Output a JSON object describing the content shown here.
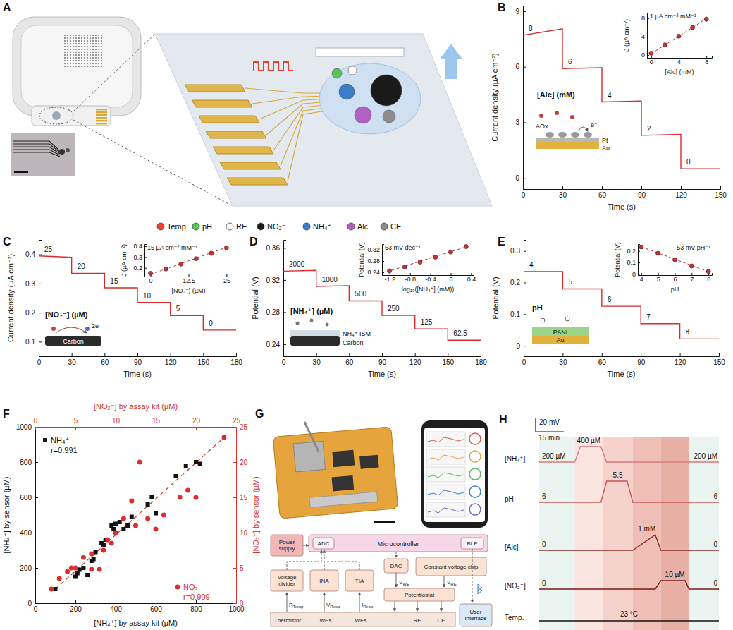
{
  "panel_labels": [
    "A",
    "B",
    "C",
    "D",
    "E",
    "F",
    "G",
    "H"
  ],
  "panel_A": {
    "legend": [
      {
        "label": "Temp.",
        "color": "#e8412f"
      },
      {
        "label": "pH",
        "color": "#59c35a"
      },
      {
        "label": "RE",
        "color": "#ffffff"
      },
      {
        "label": "NO₂⁻",
        "color": "#1a1a1a"
      },
      {
        "label": "NH₄⁺",
        "color": "#3d7cc9"
      },
      {
        "label": "Alc",
        "color": "#b35fc4"
      },
      {
        "label": "CE",
        "color": "#8c8c8c"
      }
    ]
  },
  "panel_G": {
    "boxes": [
      "Power supply",
      "ADC",
      "Microcontroller",
      "BLE",
      "Voltage divider",
      "INA",
      "TIA",
      "DAC",
      "Constant voltage chip",
      "Potentiostat",
      "Thermistor",
      "WEs",
      "WEs",
      "RE",
      "CE",
      "User interface"
    ],
    "signals": [
      {
        "base": "R",
        "sub": "Temp"
      },
      {
        "base": "V",
        "sub": "Resp"
      },
      {
        "base": "I",
        "sub": "Resp"
      },
      {
        "base": "V",
        "sub": "WE"
      },
      {
        "base": "V",
        "sub": "RE"
      }
    ]
  },
  "chart_data": [
    {
      "type": "line",
      "title": "[Alc] (mM)",
      "x_label": "Time (s)",
      "y_label": "Current density (µA cm⁻²)",
      "x": [
        0,
        30,
        30,
        60,
        60,
        90,
        90,
        120,
        120,
        150
      ],
      "series": [
        {
          "color": "#d62c2c",
          "values": [
            7.7,
            8.05,
            5.9,
            5.95,
            4.1,
            4.15,
            2.3,
            2.35,
            0.5,
            0.5
          ]
        }
      ],
      "steps": [
        8,
        6,
        4,
        2,
        0
      ],
      "xlim": [
        0,
        150
      ],
      "xticks": [
        0,
        30,
        60,
        90,
        120,
        150
      ],
      "ylim": [
        -0.6,
        9.3
      ],
      "yticks": [
        0,
        3,
        6,
        9
      ],
      "annotations": [
        "AOx",
        "Pt",
        "Au",
        "e⁻"
      ],
      "inset": {
        "type": "scatter",
        "x_label": "[Alc] (mM)",
        "y_label": "J (µA cm⁻²)",
        "annotation": "1 µA cm⁻² mM⁻¹",
        "x": [
          0,
          2,
          4,
          6,
          8
        ],
        "values": [
          0.4,
          2.2,
          4.1,
          6.0,
          7.8
        ],
        "errors": [
          0.15,
          0.25,
          0.4,
          0.5,
          0.5
        ],
        "color": "#d62c2c",
        "xlim": [
          -0.6,
          8.8
        ],
        "xticks": [
          0,
          4,
          8
        ],
        "ylim": [
          -0.6,
          9.2
        ],
        "yticks": [
          0,
          4,
          8
        ],
        "trend": {
          "x": [
            0,
            8
          ],
          "values": [
            0.3,
            7.9
          ]
        }
      }
    },
    {
      "type": "line",
      "title": "[NO₂⁻] (µM)",
      "x_label": "Time (s)",
      "y_label": "Current density (µA cm⁻²)",
      "x": [
        0,
        30,
        30,
        60,
        60,
        90,
        90,
        120,
        120,
        150,
        150,
        180
      ],
      "series": [
        {
          "color": "#d62c2c",
          "values": [
            0.395,
            0.39,
            0.335,
            0.335,
            0.285,
            0.285,
            0.235,
            0.235,
            0.19,
            0.19,
            0.14,
            0.14
          ]
        }
      ],
      "steps": [
        25,
        20,
        15,
        10,
        5,
        0
      ],
      "xlim": [
        0,
        180
      ],
      "xticks": [
        0,
        30,
        60,
        90,
        120,
        150,
        180
      ],
      "ylim": [
        0.05,
        0.45
      ],
      "yticks": [
        0.1,
        0.2,
        0.3,
        0.4
      ],
      "annotations": [
        "2e⁻",
        "Carbon"
      ],
      "inset": {
        "type": "scatter",
        "x_label": "[NO₂⁻] (µM)",
        "y_label": "J (µA cm⁻²)",
        "annotation": "15 µA cm⁻² mM⁻¹",
        "x": [
          0,
          5,
          10,
          15,
          20,
          25
        ],
        "values": [
          0.15,
          0.19,
          0.235,
          0.285,
          0.335,
          0.385
        ],
        "errors": [
          0.01,
          0.015,
          0.015,
          0.012,
          0.015,
          0.015
        ],
        "color": "#d62c2c",
        "xlim": [
          -2,
          27
        ],
        "xticks": [
          0,
          12.5,
          25
        ],
        "ylim": [
          0.12,
          0.42
        ],
        "yticks": [
          0.2,
          0.3,
          0.4
        ],
        "trend": {
          "x": [
            0,
            25
          ],
          "values": [
            0.14,
            0.39
          ]
        }
      }
    },
    {
      "type": "line",
      "title": "[NH₄⁺] (µM)",
      "x_label": "Time (s)",
      "y_label": "Potential (V)",
      "x": [
        0,
        30,
        30,
        60,
        60,
        90,
        90,
        120,
        120,
        150,
        150,
        180
      ],
      "series": [
        {
          "color": "#d62c2c",
          "values": [
            0.331,
            0.332,
            0.312,
            0.313,
            0.294,
            0.294,
            0.276,
            0.276,
            0.259,
            0.259,
            0.245,
            0.245
          ]
        }
      ],
      "steps": [
        2000,
        1000,
        500,
        250,
        125,
        62.5
      ],
      "xlim": [
        0,
        180
      ],
      "xticks": [
        0,
        30,
        60,
        90,
        120,
        150,
        180
      ],
      "ylim": [
        0.225,
        0.37
      ],
      "yticks": [
        0.24,
        0.28,
        0.32,
        0.36
      ],
      "annotations": [
        "NH₄⁺ ISM",
        "Carbon"
      ],
      "inset": {
        "type": "scatter",
        "x_label": "log₁₀([NH₄⁺] (mM))",
        "y_label": "Potential (V)",
        "annotation": "53 mV dec⁻¹",
        "x": [
          -1.204,
          -0.903,
          -0.602,
          -0.301,
          0,
          0.301
        ],
        "values": [
          0.245,
          0.259,
          0.276,
          0.294,
          0.312,
          0.331
        ],
        "errors": [
          0.006,
          0.006,
          0.005,
          0.005,
          0.004,
          0.002
        ],
        "color": "#d62c2c",
        "xlim": [
          -1.35,
          0.45
        ],
        "xticks": [
          -1.2,
          -0.8,
          -0.4,
          0,
          0.4
        ],
        "ylim": [
          0.23,
          0.34
        ],
        "yticks": [
          0.24,
          0.28,
          0.32
        ],
        "trend": {
          "x": [
            -1.25,
            0.35
          ],
          "values": [
            0.242,
            0.333
          ]
        }
      }
    },
    {
      "type": "line",
      "title": "pH",
      "x_label": "Time (s)",
      "y_label": "Potential (V)",
      "x": [
        0,
        30,
        30,
        60,
        60,
        90,
        90,
        120,
        120,
        150
      ],
      "series": [
        {
          "color": "#d62c2c",
          "values": [
            0.235,
            0.235,
            0.18,
            0.18,
            0.125,
            0.125,
            0.07,
            0.07,
            0.022,
            0.022
          ]
        }
      ],
      "steps": [
        4,
        5,
        6,
        7,
        8
      ],
      "xlim": [
        0,
        150
      ],
      "xticks": [
        0,
        30,
        60,
        90,
        120,
        150
      ],
      "ylim": [
        -0.033,
        0.335
      ],
      "yticks": [
        0,
        0.1,
        0.2,
        0.3
      ],
      "annotations": [
        "PANI",
        "Au"
      ],
      "inset": {
        "type": "scatter",
        "x_label": "pH",
        "y_label": "Potential (V)",
        "annotation": "53 mV pH⁻¹",
        "x": [
          4,
          5,
          6,
          7,
          8
        ],
        "values": [
          0.235,
          0.18,
          0.125,
          0.07,
          0.022
        ],
        "errors": [
          0.005,
          0.006,
          0.005,
          0.005,
          0.006
        ],
        "color": "#d62c2c",
        "xlim": [
          3.8,
          8.2
        ],
        "xticks": [
          4,
          5,
          6,
          7,
          8
        ],
        "ylim": [
          -0.01,
          0.26
        ],
        "yticks": [
          0,
          0.1,
          0.2
        ],
        "trend": {
          "x": [
            4,
            8
          ],
          "values": [
            0.237,
            0.02
          ]
        }
      }
    },
    {
      "type": "scatter",
      "x_label": "[NH₄⁺] by assay kit (µM)",
      "y_label": "[NH₄⁺] by sensor (µM)",
      "x2_label": "[NO₂⁻] by assay kit (µM)",
      "y2_label": "[NO₂⁻] by sensor (µM)",
      "xlim": [
        0,
        1000
      ],
      "xticks": [
        0,
        200,
        400,
        600,
        800,
        1000
      ],
      "ylim": [
        0,
        1000
      ],
      "yticks": [
        0,
        200,
        400,
        600,
        800,
        1000
      ],
      "x2lim": [
        0,
        25
      ],
      "x2ticks": [
        0,
        5,
        10,
        15,
        20,
        25
      ],
      "y2lim": [
        0,
        25
      ],
      "y2ticks": [
        0,
        5,
        10,
        15,
        20,
        25
      ],
      "series": [
        {
          "name": "NH₄⁺",
          "color": "#111111",
          "marker": "square",
          "x": [
            100,
            200,
            210,
            220,
            240,
            260,
            280,
            290,
            300,
            330,
            340,
            350,
            380,
            390,
            400,
            420,
            440,
            460,
            480,
            560,
            580,
            600,
            700,
            750,
            800,
            820
          ],
          "values": [
            80,
            150,
            170,
            190,
            200,
            160,
            240,
            250,
            290,
            340,
            330,
            360,
            440,
            420,
            450,
            460,
            420,
            440,
            490,
            560,
            600,
            510,
            720,
            780,
            800,
            790
          ]
        },
        {
          "name": "NO₂⁻",
          "color": "#d8302c",
          "marker": "circle",
          "axis": "y2",
          "x": [
            2,
            3,
            4,
            4.5,
            5,
            6,
            7,
            7,
            8,
            8.5,
            9,
            9.5,
            10,
            11,
            12,
            12.5,
            13,
            14,
            15,
            16,
            18,
            19,
            20,
            23.5
          ],
          "values": [
            2,
            3.5,
            4.5,
            5,
            5,
            6.5,
            7,
            4.8,
            4.8,
            7.5,
            9,
            8.5,
            10,
            12,
            14.5,
            11,
            20,
            12,
            10.5,
            12.5,
            15,
            16,
            15,
            23.5
          ]
        }
      ],
      "annotations": [
        "r=0.991",
        "r=0.909"
      ],
      "trend": {
        "x": [
          100,
          940
        ],
        "values": [
          80,
          940
        ]
      }
    },
    {
      "type": "line",
      "tick_labels": false,
      "x": [
        0,
        19,
        22,
        33,
        36,
        47,
        50,
        62,
        65,
        78,
        80,
        96
      ],
      "xlim": [
        0,
        96
      ],
      "bands": [
        [
          0,
          19
        ],
        [
          19,
          34
        ],
        [
          34,
          50
        ],
        [
          50,
          65
        ],
        [
          65,
          80
        ],
        [
          80,
          96
        ]
      ],
      "scale_bar": {
        "x": 15,
        "x_label": "15 min",
        "y": 20,
        "y_label": "20 mV"
      },
      "series": [
        {
          "name": "[NH₄⁺]",
          "color": "#d77b7b",
          "labels": [
            "200 µM",
            "400 µM",
            "200 µM"
          ],
          "values": [
            0,
            0,
            22,
            22,
            0,
            0,
            0,
            0,
            0,
            0,
            0,
            0
          ]
        },
        {
          "name": "pH",
          "color": "#c9554f",
          "labels": [
            "6",
            "5.5",
            "6"
          ],
          "values": [
            0,
            0,
            0,
            0,
            30,
            30,
            0,
            0,
            0,
            0,
            0,
            0
          ]
        },
        {
          "name": "[Alc]",
          "color": "#8e2a22",
          "labels": [
            "0",
            "1 mM",
            "0"
          ],
          "values": [
            0,
            0,
            0,
            0,
            0,
            0,
            0,
            22,
            0,
            0,
            0,
            0
          ]
        },
        {
          "name": "[NO₂⁻]",
          "color": "#7a1a14",
          "labels": [
            "0",
            "10 µM",
            "0"
          ],
          "values": [
            0,
            0,
            0,
            0,
            0,
            0,
            0,
            0,
            12,
            12,
            0,
            0
          ]
        },
        {
          "name": "Temp.",
          "color": "#111111",
          "labels": [
            "23 °C"
          ],
          "values": [
            0,
            0,
            0,
            0,
            0,
            0,
            0,
            0,
            0,
            0,
            0,
            0
          ]
        }
      ]
    }
  ]
}
